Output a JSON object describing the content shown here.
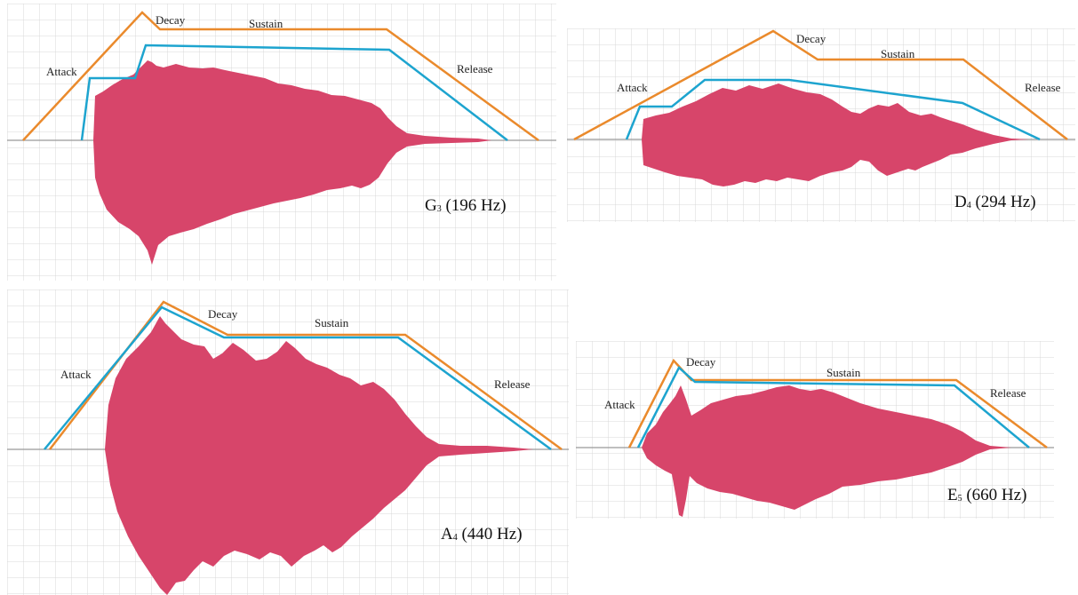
{
  "colors": {
    "waveform": "#d7456a",
    "envelope_outer": "#ea8a2c",
    "envelope_inner": "#1da4cf",
    "grid": "#d8d8d8",
    "axis": "#999999"
  },
  "labels": {
    "attack": "Attack",
    "decay": "Decay",
    "sustain": "Sustain",
    "release": "Release"
  },
  "notes": [
    {
      "letter": "G",
      "octave": "3",
      "freq": "(196 Hz)"
    },
    {
      "letter": "D",
      "octave": "4",
      "freq": "(294 Hz)"
    },
    {
      "letter": "A",
      "octave": "4",
      "freq": "(440 Hz)"
    },
    {
      "letter": "E",
      "octave": "5",
      "freq": "(660 Hz)"
    }
  ]
}
